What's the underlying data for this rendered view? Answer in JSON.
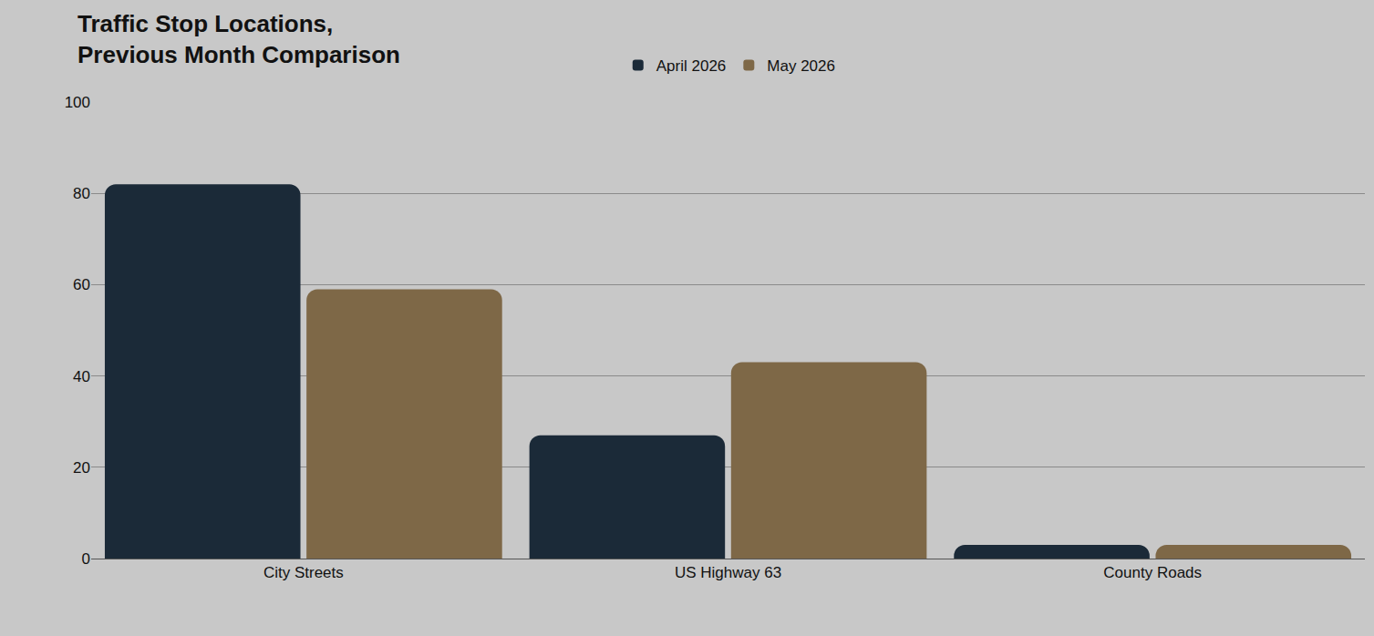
{
  "chart_data": {
    "type": "bar",
    "title": "Traffic Stop Locations, Previous Month Comparison",
    "categories": [
      "City Streets",
      "US Highway 63",
      "County Roads"
    ],
    "series": [
      {
        "name": "April 2026",
        "color": "#1b2a38",
        "values": [
          82,
          27,
          3
        ]
      },
      {
        "name": "May 2026",
        "color": "#7e6847",
        "values": [
          59,
          43,
          3
        ]
      }
    ],
    "ylim": [
      0,
      100
    ],
    "yticks": [
      0,
      20,
      40,
      60,
      80,
      100
    ],
    "grid": true,
    "legend": "top"
  }
}
